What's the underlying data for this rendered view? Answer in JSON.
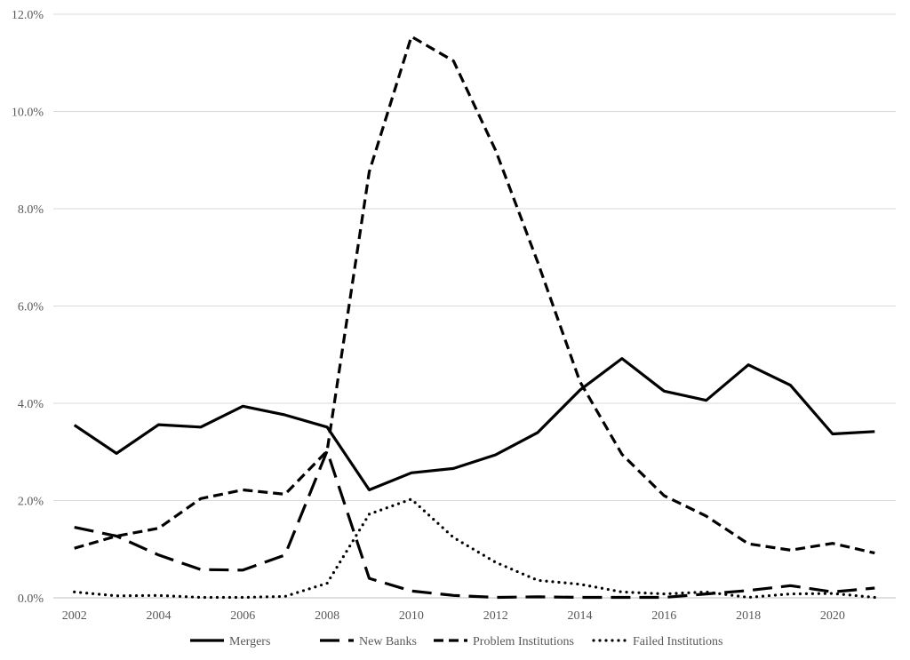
{
  "chart_data": {
    "type": "line",
    "x": [
      "2002",
      "2003",
      "2004",
      "2005",
      "2006",
      "2007",
      "2008",
      "2009",
      "2010",
      "2011",
      "2012",
      "2013",
      "2014",
      "2015",
      "2016",
      "2017",
      "2018",
      "2019",
      "2020",
      "2021"
    ],
    "x_tick_labels": [
      "2002",
      "2004",
      "2006",
      "2008",
      "2010",
      "2012",
      "2014",
      "2016",
      "2018",
      "2020"
    ],
    "y_tick_labels": [
      "0.0%",
      "2.0%",
      "4.0%",
      "6.0%",
      "8.0%",
      "10.0%",
      "12.0%"
    ],
    "ylim": [
      0,
      12
    ],
    "y_unit": "%",
    "grid": "horizontal",
    "legend_placement": "bottom",
    "series": [
      {
        "name": "Mergers",
        "style": "solid",
        "values": [
          3.55,
          2.97,
          3.56,
          3.51,
          3.94,
          3.76,
          3.51,
          2.22,
          2.57,
          2.66,
          2.94,
          3.4,
          4.27,
          4.92,
          4.25,
          4.06,
          4.79,
          4.37,
          3.37,
          3.42
        ]
      },
      {
        "name": "New Banks",
        "style": "long-dash",
        "values": [
          1.45,
          1.27,
          0.88,
          0.58,
          0.57,
          0.88,
          3.02,
          0.4,
          0.14,
          0.05,
          0.01,
          0.02,
          0.01,
          0.01,
          0.01,
          0.08,
          0.15,
          0.25,
          0.12,
          0.2
        ]
      },
      {
        "name": "Problem Institutions",
        "style": "short-dash",
        "values": [
          1.02,
          1.27,
          1.43,
          2.04,
          2.22,
          2.13,
          3.02,
          8.76,
          11.54,
          11.04,
          9.2,
          6.9,
          4.45,
          2.95,
          2.1,
          1.68,
          1.11,
          0.98,
          1.12,
          0.92
        ]
      },
      {
        "name": "Failed Institutions",
        "style": "dotted",
        "values": [
          0.12,
          0.04,
          0.05,
          0.01,
          0.01,
          0.03,
          0.3,
          1.72,
          2.03,
          1.24,
          0.73,
          0.36,
          0.28,
          0.12,
          0.08,
          0.12,
          0.01,
          0.08,
          0.09,
          0.01
        ]
      }
    ],
    "colors": {
      "line": "#000000",
      "grid": "#d9d9d9",
      "text": "#595959",
      "axis": "#bfbfbf"
    }
  }
}
